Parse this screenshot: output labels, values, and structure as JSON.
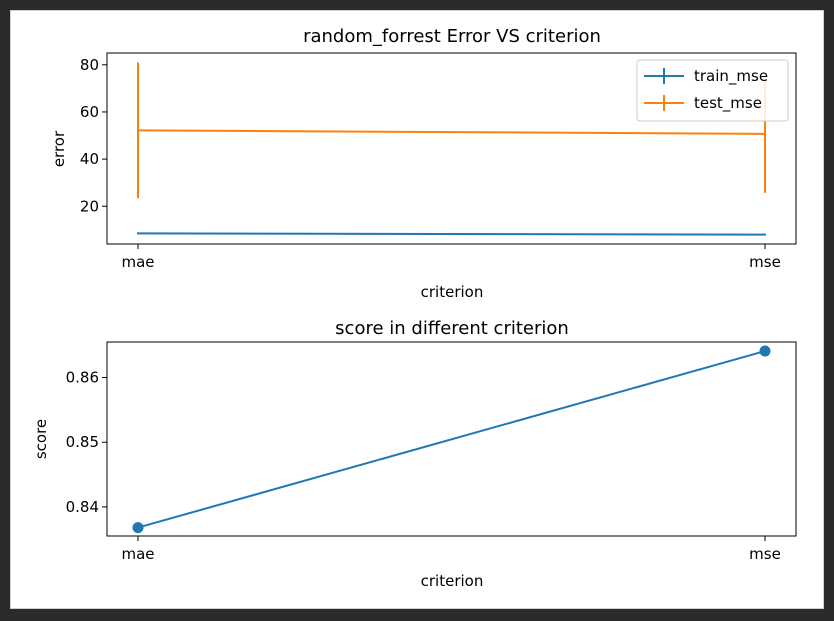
{
  "chart_data": [
    {
      "type": "line",
      "title": "random_forrest Error VS criterion",
      "xlabel": "criterion",
      "ylabel": "error",
      "categories": [
        "mae",
        "mse"
      ],
      "ylim": [
        4,
        85
      ],
      "yticks": [
        20,
        40,
        60,
        80
      ],
      "legend": "top-right",
      "series": [
        {
          "name": "train_mse",
          "color": "#1f77b4",
          "values": [
            8.5,
            8.0
          ],
          "err": [
            0.4,
            0.4
          ]
        },
        {
          "name": "test_mse",
          "color": "#ff7f0e",
          "values": [
            52.2,
            50.7
          ],
          "err": [
            28.8,
            25.0
          ]
        }
      ]
    },
    {
      "type": "line",
      "title": "score in different criterion",
      "xlabel": "criterion",
      "ylabel": "score",
      "categories": [
        "mae",
        "mse"
      ],
      "ylim": [
        0.8355,
        0.8655
      ],
      "yticks": [
        "0.84",
        "0.85",
        "0.86"
      ],
      "series": [
        {
          "color": "#1f77b4",
          "values": [
            0.8368,
            0.8641
          ],
          "marker": "circle"
        }
      ]
    }
  ]
}
